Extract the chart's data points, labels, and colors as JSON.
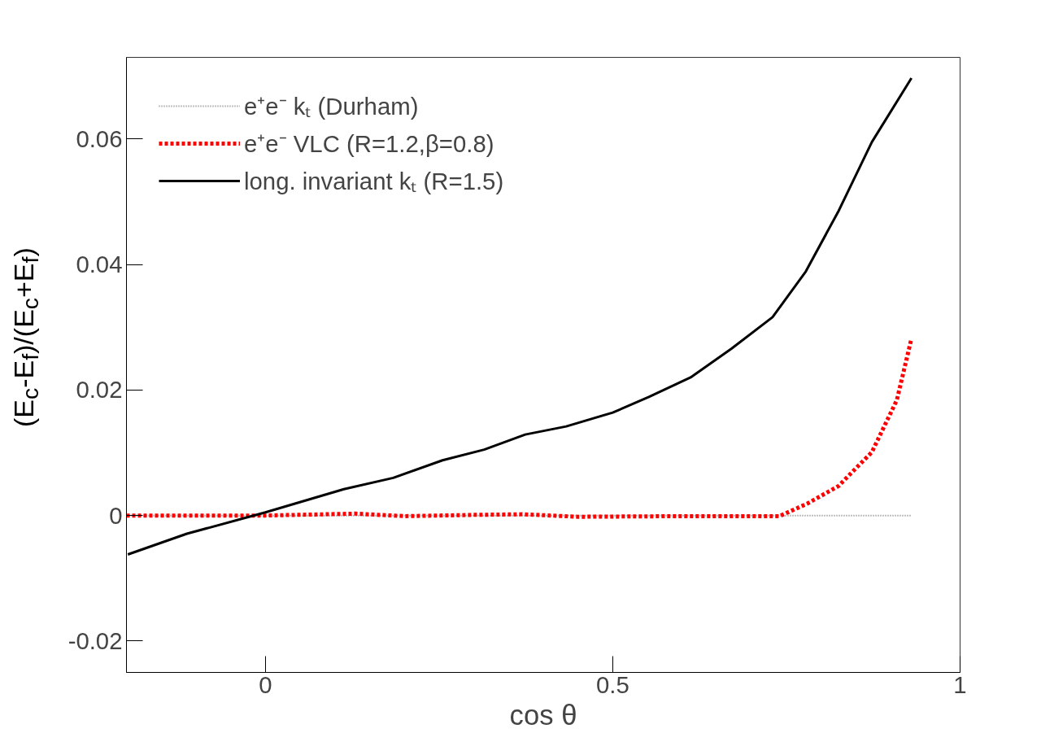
{
  "chart_data": {
    "type": "line",
    "xlabel": "cos θ",
    "ylabel": "(E$_{c}$-E$_{f}$)/(E$_{c}$+E$_{f}$)",
    "xlim": [
      -0.2,
      1.0
    ],
    "ylim": [
      -0.025,
      0.073
    ],
    "xticks": [
      0,
      0.5,
      1
    ],
    "yticks": [
      -0.02,
      0,
      0.02,
      0.04,
      0.06
    ],
    "grid": false,
    "legend": "top left",
    "series": [
      {
        "name": "e⁺e⁻ kₜ (Durham)",
        "color": "#808080",
        "line_style": "dotted",
        "x": [
          -0.2,
          0.0,
          0.2,
          0.4,
          0.6,
          0.75,
          0.8,
          0.85,
          0.93
        ],
        "values": [
          0.0,
          0.0,
          0.0,
          0.0,
          0.0,
          0.0,
          0.0,
          0.0,
          0.0
        ]
      },
      {
        "name": "e⁺e⁻ VLC (R=1.2,β=0.8)",
        "color": "#ff0000",
        "line_style": "dashed",
        "x": [
          -0.2,
          0.0,
          0.13,
          0.2,
          0.3,
          0.37,
          0.45,
          0.6,
          0.74,
          0.78,
          0.825,
          0.873,
          0.909,
          0.93
        ],
        "values": [
          0.0,
          0.0,
          0.0003,
          -0.0001,
          0.0001,
          0.0002,
          -0.0002,
          -0.0001,
          -0.0001,
          0.0019,
          0.0047,
          0.0101,
          0.0184,
          0.0282
        ]
      },
      {
        "name": "long. invariant kₜ (R=1.5)",
        "color": "#000000",
        "line_style": "solid",
        "x": [
          -0.198,
          -0.113,
          0.0,
          0.113,
          0.184,
          0.255,
          0.315,
          0.374,
          0.433,
          0.5,
          0.552,
          0.612,
          0.671,
          0.73,
          0.778,
          0.825,
          0.873,
          0.93
        ],
        "values": [
          -0.0062,
          -0.0029,
          0.0005,
          0.0042,
          0.006,
          0.0088,
          0.0105,
          0.0129,
          0.0142,
          0.0164,
          0.0189,
          0.022,
          0.0266,
          0.0316,
          0.0389,
          0.0485,
          0.0595,
          0.0697
        ]
      }
    ]
  }
}
